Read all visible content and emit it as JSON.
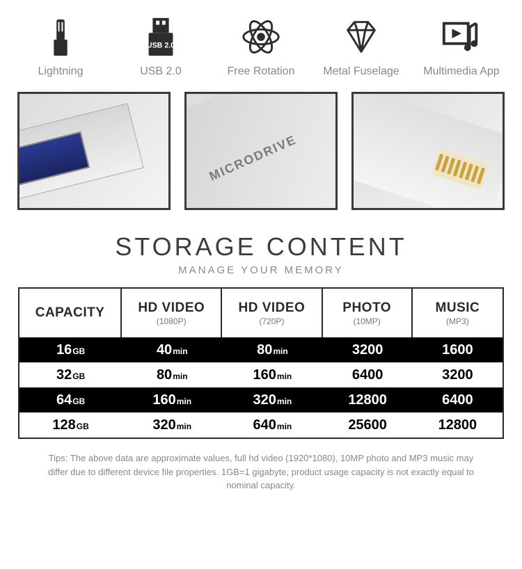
{
  "features": [
    {
      "label": "Lightning"
    },
    {
      "label": "USB 2.0",
      "badge": "USB 2.0"
    },
    {
      "label": "Free Rotation"
    },
    {
      "label": "Metal Fuselage"
    },
    {
      "label": "Multimedia App"
    }
  ],
  "brand": "MICRODRIVE",
  "heading": {
    "title": "STORAGE CONTENT",
    "subtitle": "MANAGE YOUR MEMORY"
  },
  "columns": [
    {
      "title": "CAPACITY",
      "sub": ""
    },
    {
      "title": "HD VIDEO",
      "sub": "(1080P)"
    },
    {
      "title": "HD VIDEO",
      "sub": "(720P)"
    },
    {
      "title": "PHOTO",
      "sub": "(10MP)"
    },
    {
      "title": "MUSIC",
      "sub": "(MP3)"
    }
  ],
  "rows": [
    {
      "bg": "dark",
      "capacity_val": "16",
      "capacity_unit": "GB",
      "hd1080_val": "40",
      "hd1080_unit": "min",
      "hd720_val": "80",
      "hd720_unit": "min",
      "photo": "3200",
      "music": "1600"
    },
    {
      "bg": "light",
      "capacity_val": "32",
      "capacity_unit": "GB",
      "hd1080_val": "80",
      "hd1080_unit": "min",
      "hd720_val": "160",
      "hd720_unit": "min",
      "photo": "6400",
      "music": "3200"
    },
    {
      "bg": "dark",
      "capacity_val": "64",
      "capacity_unit": "GB",
      "hd1080_val": "160",
      "hd1080_unit": "min",
      "hd720_val": "320",
      "hd720_unit": "min",
      "photo": "12800",
      "music": "6400"
    },
    {
      "bg": "light",
      "capacity_val": "128",
      "capacity_unit": "GB",
      "hd1080_val": "320",
      "hd1080_unit": "min",
      "hd720_val": "640",
      "hd720_unit": "min",
      "photo": "25600",
      "music": "12800"
    }
  ],
  "tips": "Tips: The above data are approximate values, full hd video (1920*1080), 10MP photo and MP3 music may differ due to different device file properties. 1GB=1 gigabyte, product usage capacity is not exactly equal to nominal capacity.",
  "colors": {
    "dark_row_bg": "#000000",
    "dark_row_text": "#ffffff",
    "light_row_bg": "#ffffff",
    "light_row_text": "#000000",
    "border": "#2a2a2a",
    "muted": "#888888"
  }
}
